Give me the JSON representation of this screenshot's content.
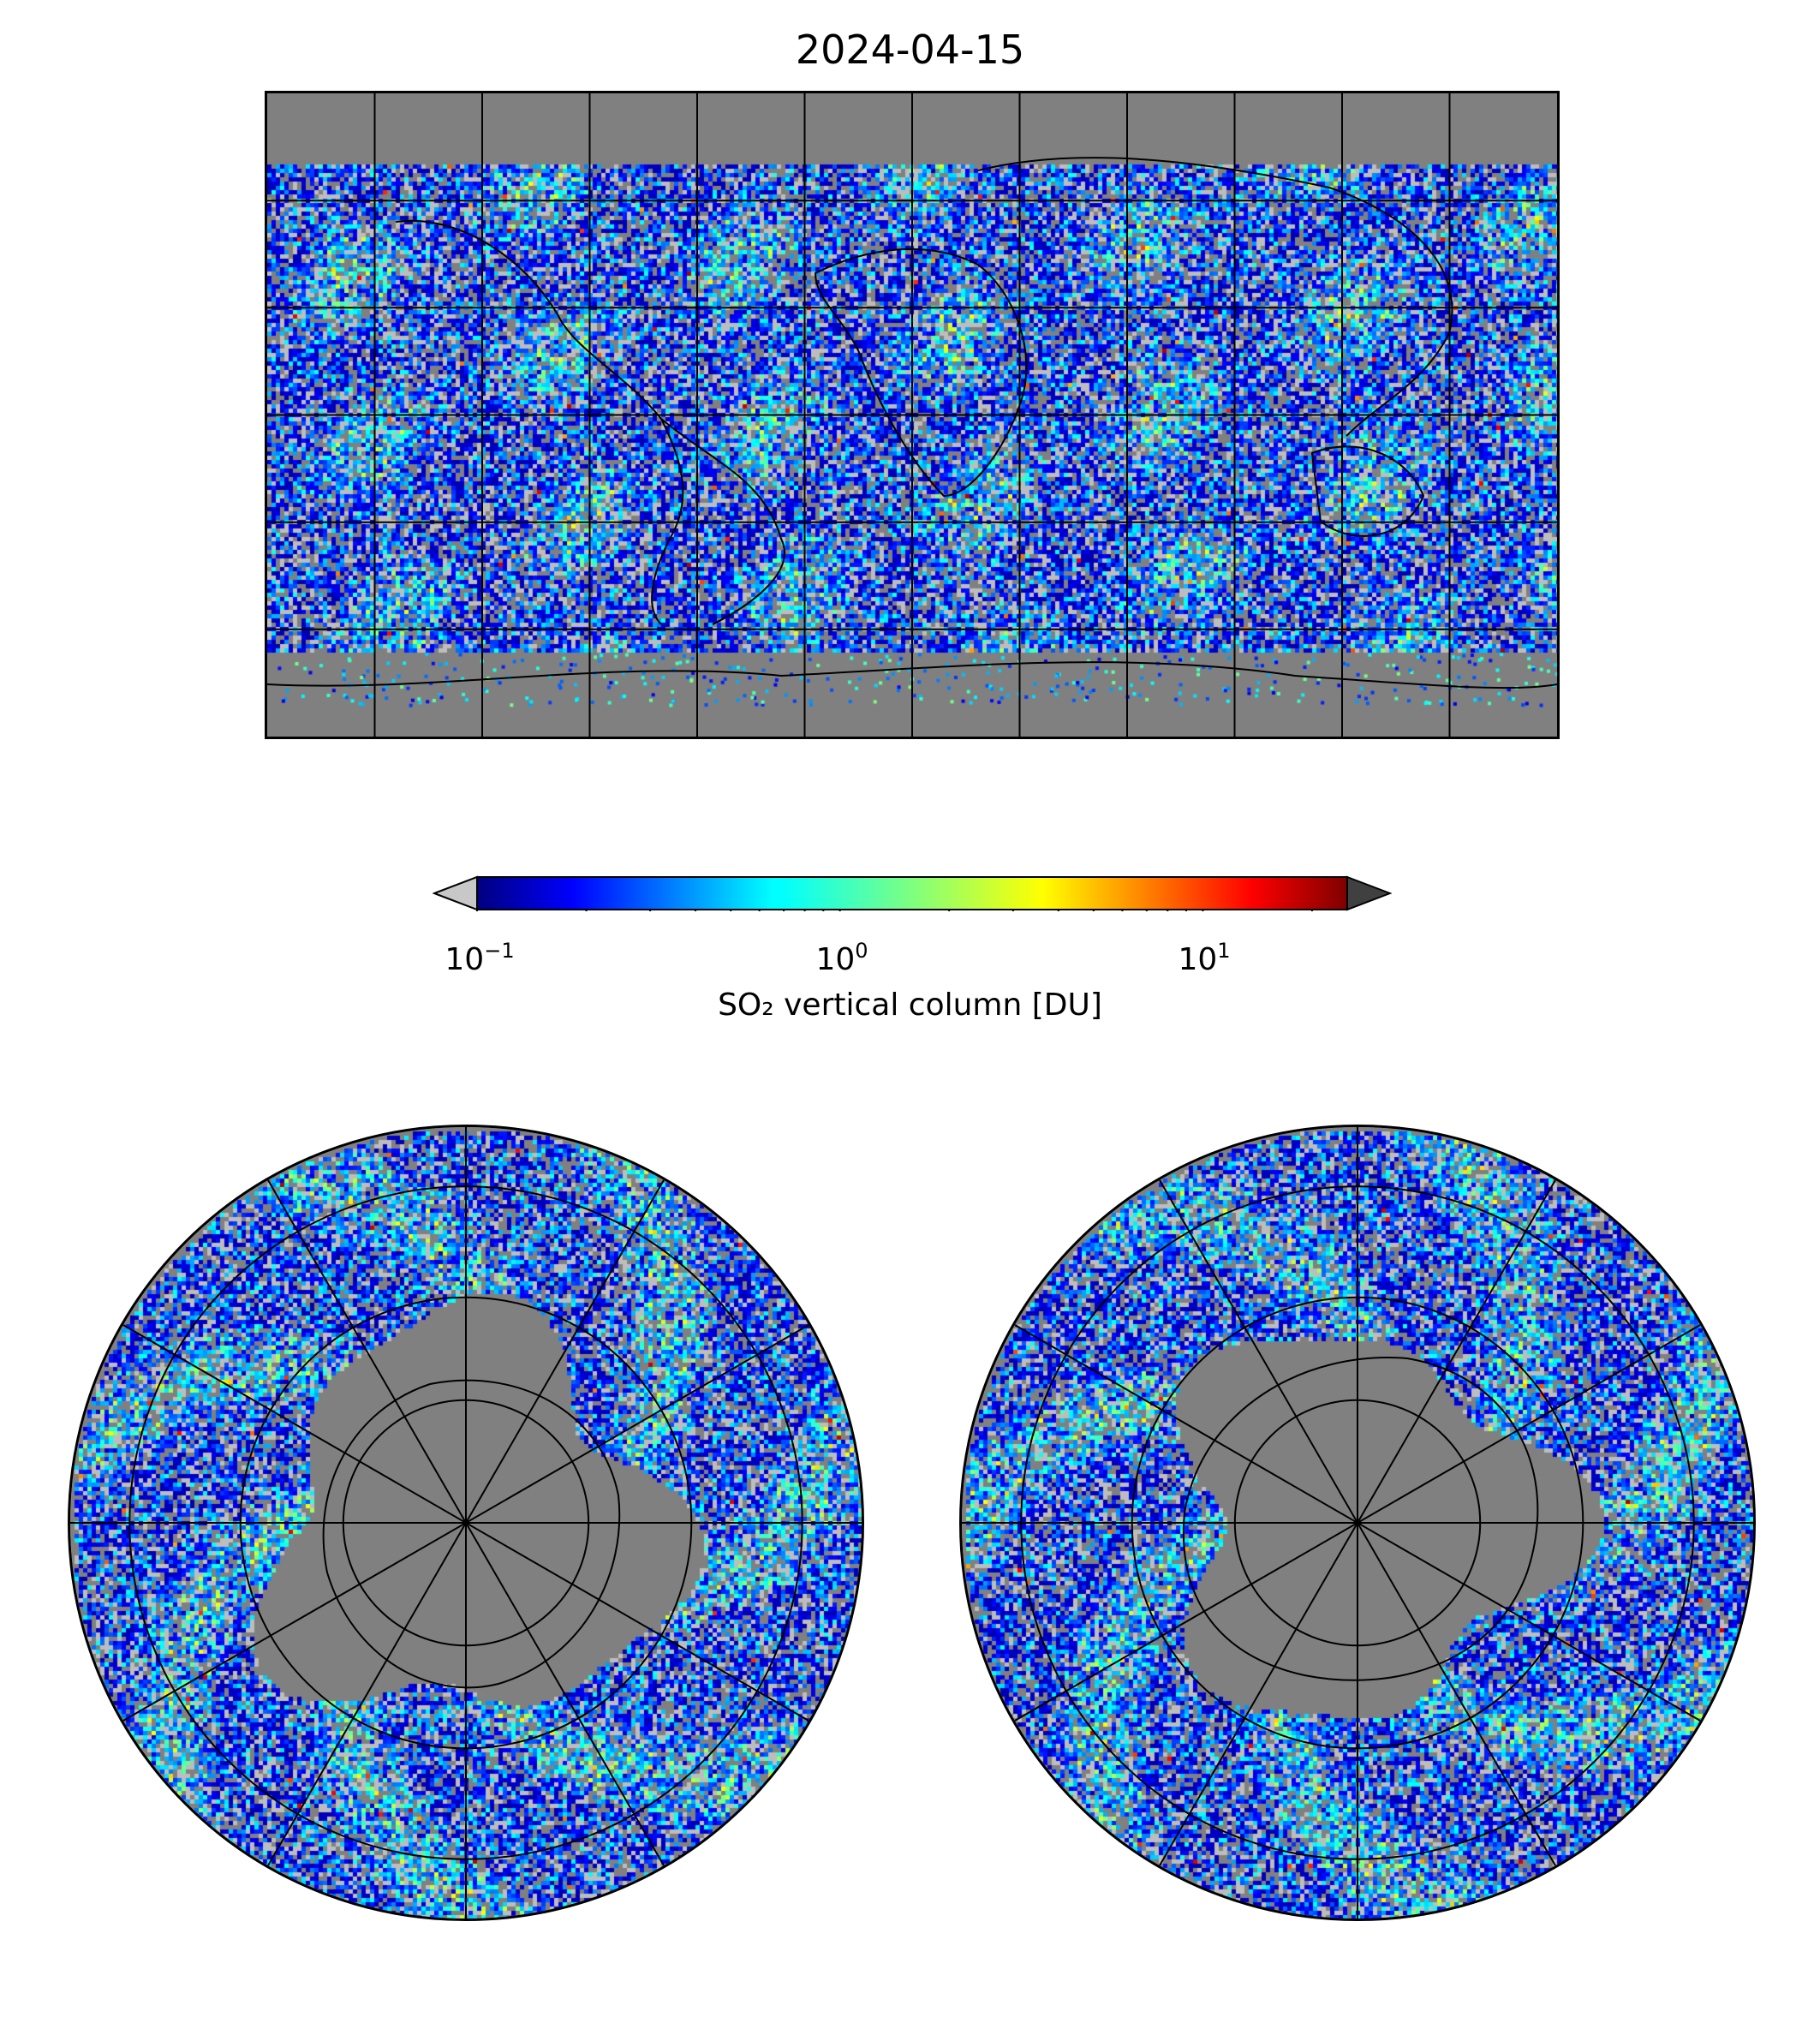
{
  "title": "2024-04-15",
  "colorbar": {
    "label": "SO₂ vertical column [DU]",
    "scale": "log",
    "range": [
      0.1,
      25
    ],
    "colormap": "jet",
    "under_color": "#c8c8c8",
    "over_color": "#404040",
    "ticks": [
      {
        "base": "10",
        "exp": "−1"
      },
      {
        "base": "10",
        "exp": "0"
      },
      {
        "base": "10",
        "exp": "1"
      }
    ]
  },
  "maps": {
    "background_color": "#808080",
    "coastline_color": "#000000",
    "global": {
      "projection": "plate-carree",
      "gridlines_lon_deg": 30,
      "gridlines_lat_deg": 30
    },
    "north": {
      "projection": "north-polar-stereographic",
      "circles_lat_deg": [
        60,
        30,
        0
      ]
    },
    "south": {
      "projection": "south-polar-stereographic",
      "circles_lat_deg": [
        -60,
        -30,
        0
      ]
    }
  }
}
